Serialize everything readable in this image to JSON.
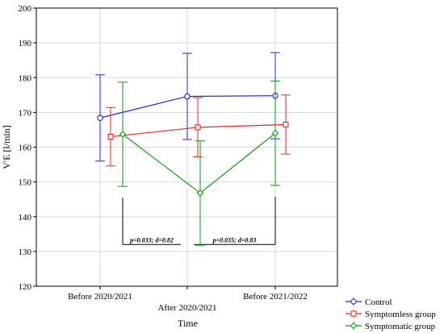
{
  "chart_data": {
    "type": "line",
    "categories": [
      "Before 2020/2021",
      "After 2020/2021",
      "Before 2021/2022"
    ],
    "xlabel": "Time",
    "ylabel": "V'E [l/min]",
    "ylim": [
      120,
      200
    ],
    "yticks": [
      120,
      130,
      140,
      150,
      160,
      170,
      180,
      190,
      200
    ],
    "grid": true,
    "legend_position": "bottom-right",
    "series": [
      {
        "name": "Control",
        "color": "#2222dd",
        "marker": "circle",
        "values": [
          168.4,
          174.6,
          174.8
        ],
        "err_low": [
          156.0,
          162.2,
          162.4
        ],
        "err_high": [
          180.8,
          187.0,
          187.2
        ]
      },
      {
        "name": "Symptomless group",
        "color": "#ee2222",
        "marker": "square",
        "values": [
          163.0,
          165.7,
          166.5
        ],
        "err_low": [
          154.6,
          157.2,
          158.0
        ],
        "err_high": [
          171.4,
          174.2,
          175.0
        ]
      },
      {
        "name": "Symptomatic group",
        "color": "#0a9a0a",
        "marker": "diamond",
        "values": [
          163.7,
          146.8,
          164.0
        ],
        "err_low": [
          148.7,
          131.8,
          149.0
        ],
        "err_high": [
          178.7,
          161.8,
          179.0
        ]
      }
    ],
    "annotations": [
      {
        "text": "p=0.033; d=0.82",
        "from": 0,
        "to": 1,
        "y": 132
      },
      {
        "text": "p=0.035; d=0.83",
        "from": 1,
        "to": 2,
        "y": 132
      }
    ]
  }
}
